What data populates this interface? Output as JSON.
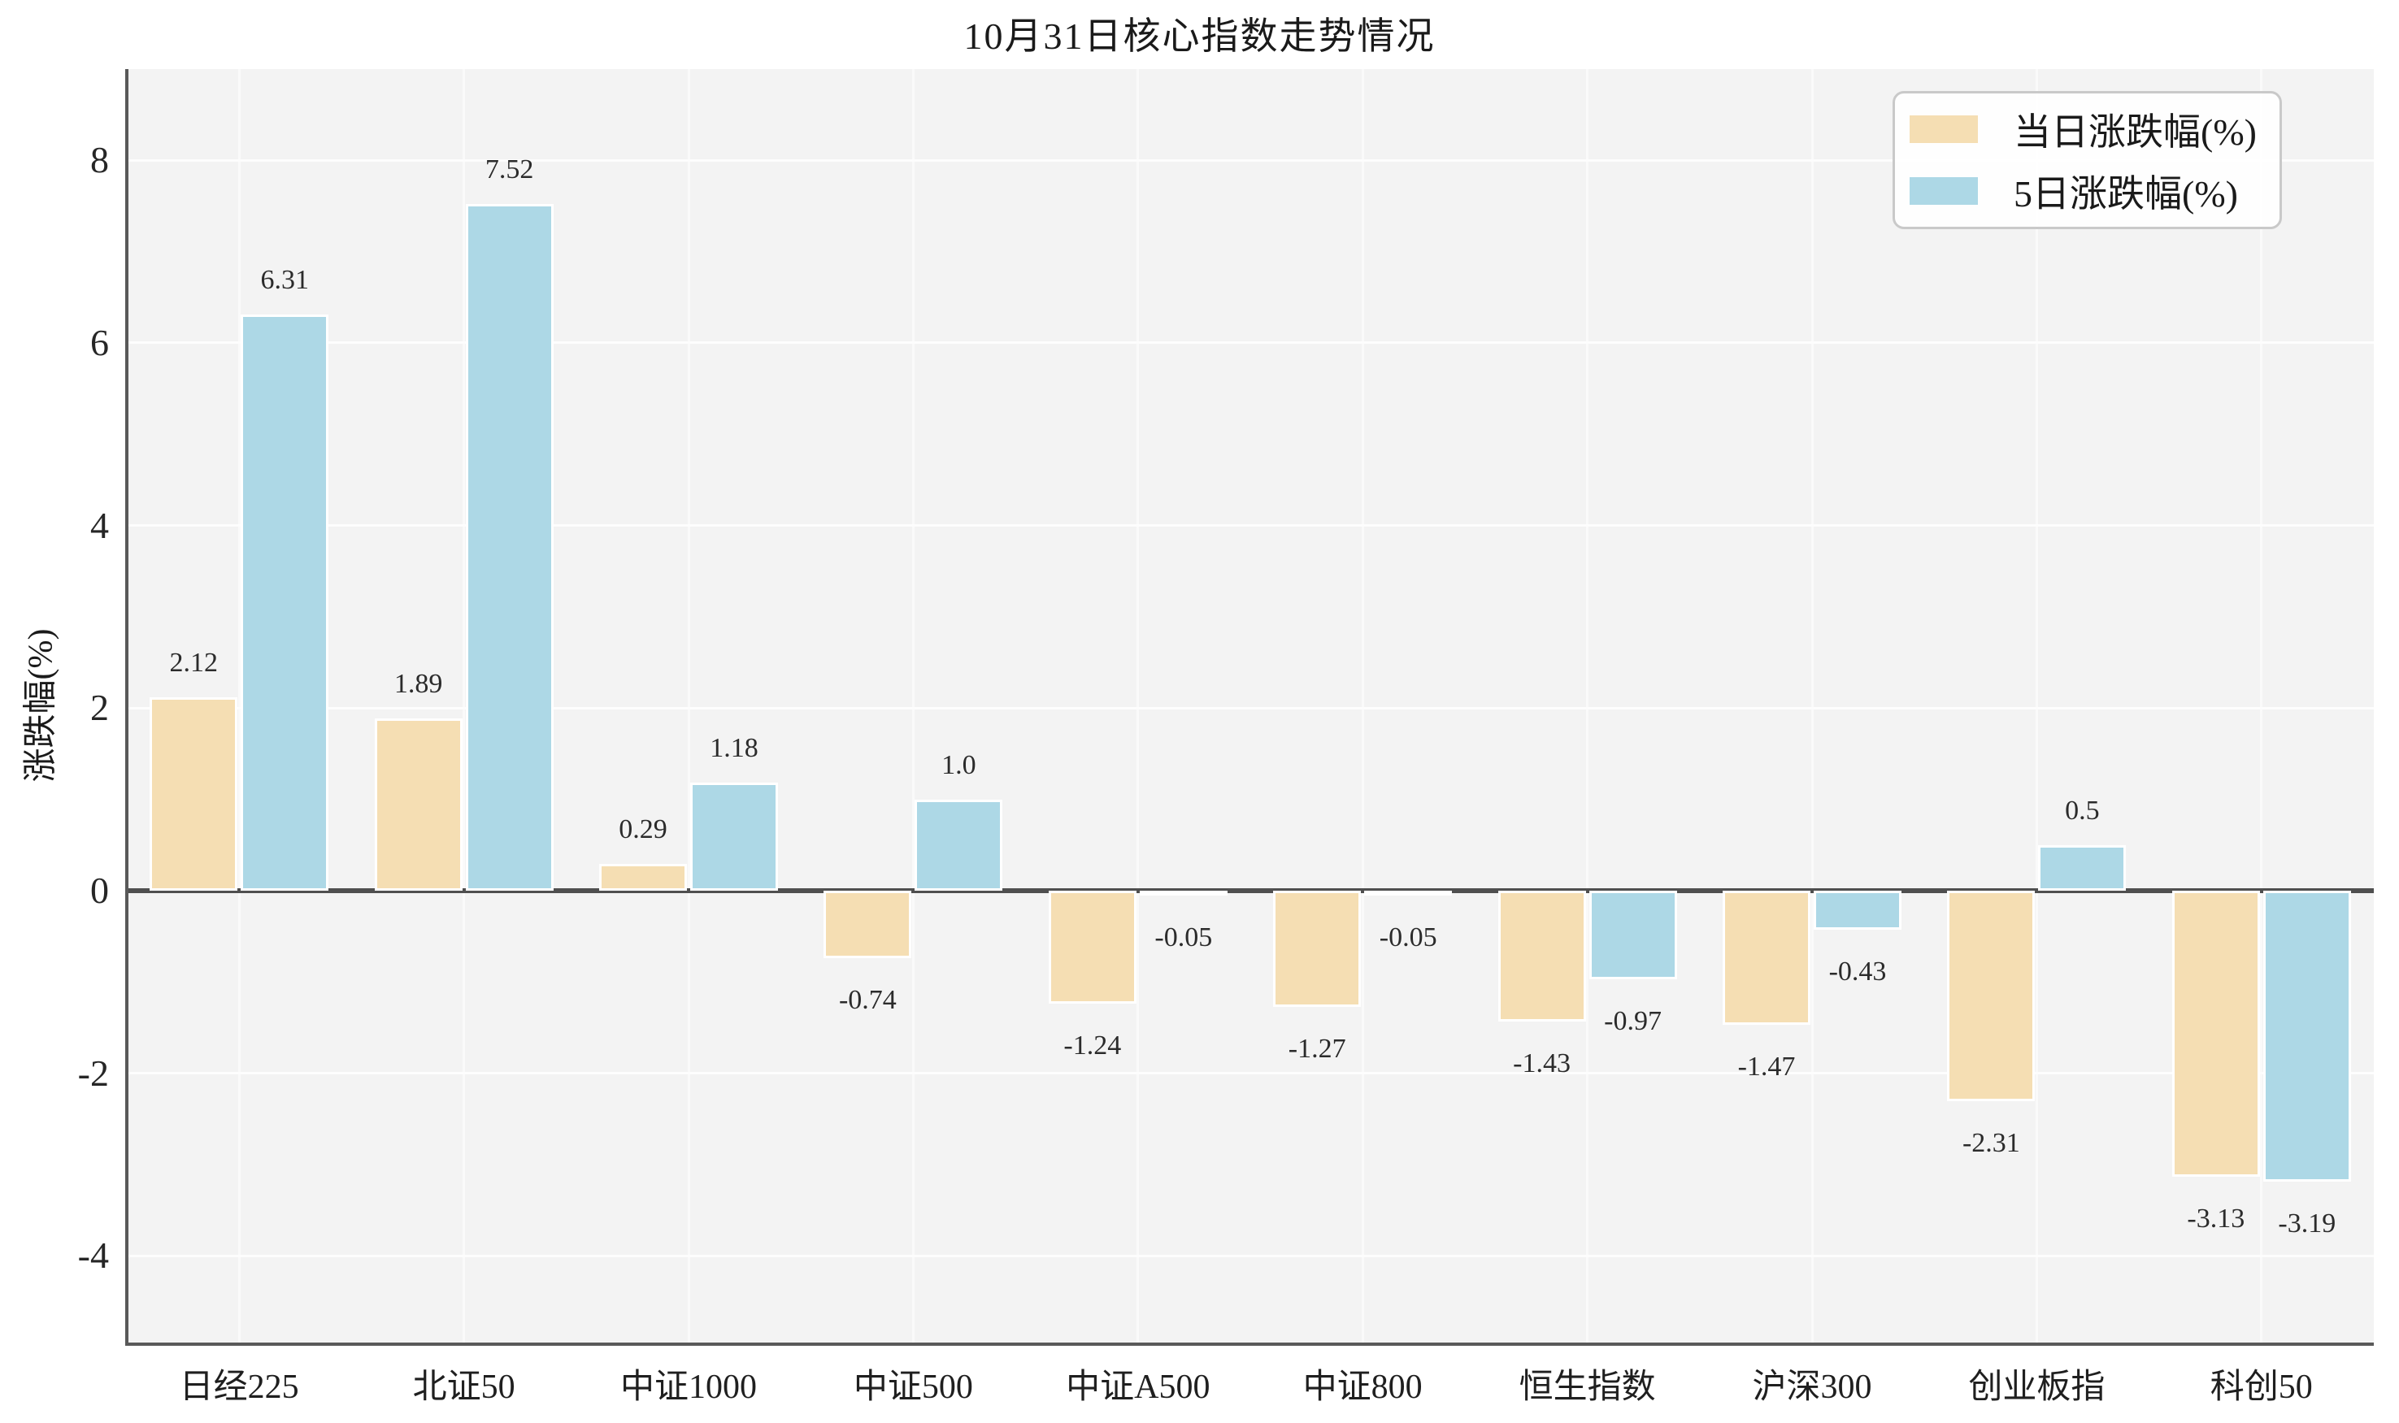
{
  "figure": {
    "title": "10月31日核心指数走势情况",
    "ylabel": "涨跌幅(%)"
  },
  "chart_data": {
    "type": "bar",
    "title": "10月31日核心指数走势情况",
    "xlabel": "",
    "ylabel": "涨跌幅(%)",
    "categories": [
      "日经225",
      "北证50",
      "中证1000",
      "中证500",
      "中证A500",
      "中证800",
      "恒生指数",
      "沪深300",
      "创业板指",
      "科创50"
    ],
    "series": [
      {
        "name": "当日涨跌幅(%)",
        "color": "#F5DEB3",
        "values": [
          2.12,
          1.89,
          0.29,
          -0.74,
          -1.24,
          -1.27,
          -1.43,
          -1.47,
          -2.31,
          -3.13
        ],
        "labels": [
          "2.12",
          "1.89",
          "0.29",
          "-0.74",
          "-1.24",
          "-1.27",
          "-1.43",
          "-1.47",
          "-2.31",
          "-3.13"
        ]
      },
      {
        "name": "5日涨跌幅(%)",
        "color": "#ADD8E6",
        "values": [
          6.31,
          7.52,
          1.18,
          1.0,
          -0.05,
          -0.05,
          -0.97,
          -0.43,
          0.5,
          -3.19
        ],
        "labels": [
          "6.31",
          "7.52",
          "1.18",
          "1.0",
          "-0.05",
          "-0.05",
          "-0.97",
          "-0.43",
          "0.5",
          "-3.19"
        ]
      }
    ],
    "ylim": [
      -4.95,
      9.0
    ],
    "yticks": [
      8,
      6,
      4,
      2,
      0,
      -2,
      -4
    ],
    "ytick_labels": [
      "8",
      "6",
      "4",
      "2",
      "0",
      "-2",
      "-4"
    ],
    "grid": true,
    "legend_position": "upper right",
    "bar_edge_color": "#FFFFFF",
    "plot_bg_color": "#F3F3F3",
    "zero_line_color": "#4F4F4F",
    "spine_color": "#595959"
  }
}
